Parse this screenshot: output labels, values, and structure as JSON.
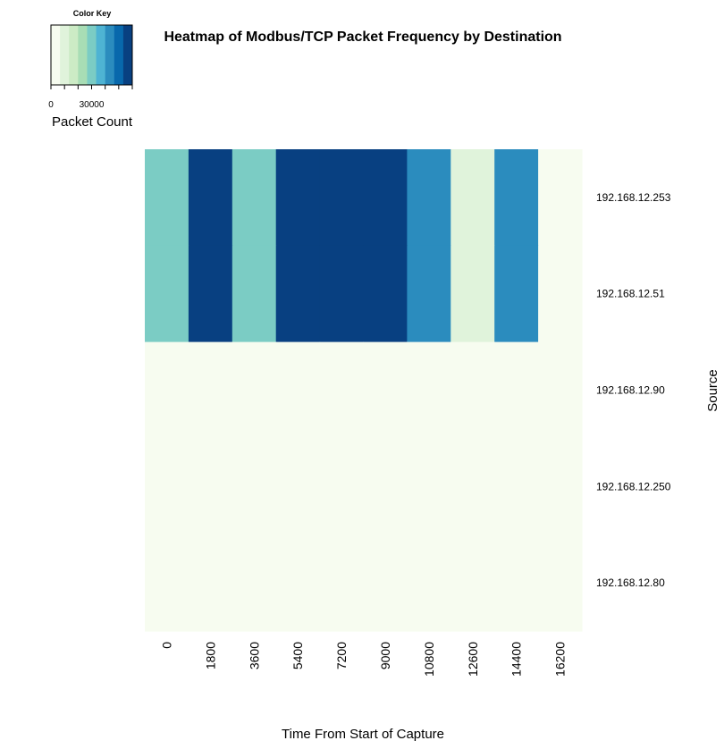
{
  "chart_data": {
    "type": "heatmap",
    "title": "Heatmap of Modbus/TCP Packet Frequency by Destination",
    "xlabel": "Time From Start of Capture",
    "ylabel": "Source",
    "x": [
      "0",
      "1800",
      "3600",
      "5400",
      "7200",
      "9000",
      "10800",
      "12600",
      "14400",
      "16200"
    ],
    "y": [
      "192.168.12.253",
      "192.168.12.51",
      "192.168.12.90",
      "192.168.12.250",
      "192.168.12.80"
    ],
    "values": [
      [
        30000,
        60000,
        30000,
        60000,
        60000,
        60000,
        40000,
        10000,
        40000,
        0
      ],
      [
        30000,
        60000,
        30000,
        60000,
        60000,
        60000,
        40000,
        10000,
        40000,
        0
      ],
      [
        0,
        0,
        0,
        0,
        0,
        0,
        0,
        0,
        0,
        0
      ],
      [
        0,
        0,
        0,
        0,
        0,
        0,
        0,
        0,
        0,
        0
      ],
      [
        0,
        0,
        0,
        0,
        0,
        0,
        0,
        0,
        0,
        0
      ]
    ],
    "colors": [
      "#f7fcf0",
      "#e0f3db",
      "#ccebc5",
      "#a8ddb5",
      "#7bccc4",
      "#4eb3d3",
      "#2b8cbe",
      "#0868ac",
      "#084081"
    ],
    "color_key": {
      "title": "Color Key",
      "label": "Packet Count",
      "ticks": [
        "0",
        "30000"
      ],
      "range": [
        0,
        60000
      ]
    }
  }
}
